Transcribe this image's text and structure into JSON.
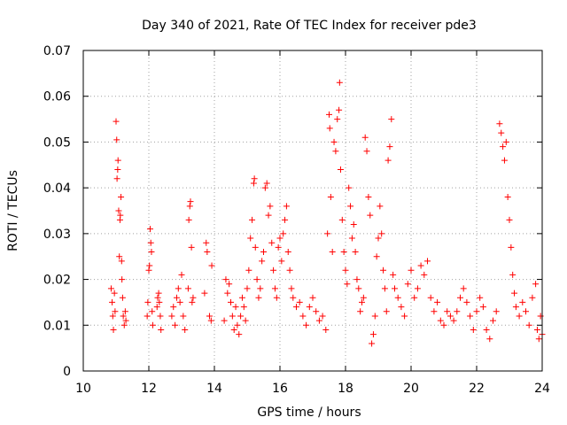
{
  "chart_data": {
    "type": "scatter",
    "title": "Day 340 of 2021, Rate Of TEC Index for receiver pde3",
    "xlabel": "GPS time / hours",
    "ylabel": "ROTI / TECUs",
    "xlim": [
      10,
      24
    ],
    "ylim": [
      0,
      0.07
    ],
    "xticks": [
      10,
      12,
      14,
      16,
      18,
      20,
      22,
      24
    ],
    "xtick_labels": [
      "10",
      "12",
      "14",
      "16",
      "18",
      "20",
      "22",
      "24"
    ],
    "yticks": [
      0,
      0.01,
      0.02,
      0.03,
      0.04,
      0.05,
      0.06,
      0.07
    ],
    "ytick_labels": [
      "0",
      "0.01",
      "0.02",
      "0.03",
      "0.04",
      "0.05",
      "0.06",
      "0.07"
    ],
    "grid": true,
    "marker": "plus",
    "color": "#ff0000",
    "series": [
      {
        "name": "ROTI",
        "points": [
          [
            10.85,
            0.018
          ],
          [
            10.88,
            0.015
          ],
          [
            10.9,
            0.012
          ],
          [
            10.92,
            0.009
          ],
          [
            10.95,
            0.017
          ],
          [
            10.97,
            0.013
          ],
          [
            11.0,
            0.0545
          ],
          [
            11.02,
            0.0505
          ],
          [
            11.03,
            0.042
          ],
          [
            11.05,
            0.044
          ],
          [
            11.06,
            0.046
          ],
          [
            11.08,
            0.035
          ],
          [
            11.1,
            0.025
          ],
          [
            11.12,
            0.033
          ],
          [
            11.13,
            0.034
          ],
          [
            11.15,
            0.038
          ],
          [
            11.17,
            0.024
          ],
          [
            11.18,
            0.02
          ],
          [
            11.2,
            0.016
          ],
          [
            11.22,
            0.012
          ],
          [
            11.25,
            0.01
          ],
          [
            11.28,
            0.013
          ],
          [
            11.3,
            0.011
          ],
          [
            11.95,
            0.012
          ],
          [
            11.97,
            0.015
          ],
          [
            12.0,
            0.022
          ],
          [
            12.02,
            0.023
          ],
          [
            12.04,
            0.031
          ],
          [
            12.06,
            0.028
          ],
          [
            12.08,
            0.026
          ],
          [
            12.1,
            0.013
          ],
          [
            12.12,
            0.01
          ],
          [
            12.25,
            0.014
          ],
          [
            12.27,
            0.016
          ],
          [
            12.3,
            0.017
          ],
          [
            12.32,
            0.015
          ],
          [
            12.35,
            0.012
          ],
          [
            12.37,
            0.009
          ],
          [
            12.7,
            0.012
          ],
          [
            12.75,
            0.014
          ],
          [
            12.8,
            0.01
          ],
          [
            12.85,
            0.016
          ],
          [
            12.9,
            0.018
          ],
          [
            12.95,
            0.015
          ],
          [
            13.0,
            0.021
          ],
          [
            13.05,
            0.012
          ],
          [
            13.1,
            0.009
          ],
          [
            13.2,
            0.018
          ],
          [
            13.22,
            0.033
          ],
          [
            13.25,
            0.036
          ],
          [
            13.27,
            0.037
          ],
          [
            13.3,
            0.027
          ],
          [
            13.32,
            0.015
          ],
          [
            13.35,
            0.016
          ],
          [
            13.7,
            0.017
          ],
          [
            13.75,
            0.028
          ],
          [
            13.78,
            0.026
          ],
          [
            13.85,
            0.012
          ],
          [
            13.9,
            0.011
          ],
          [
            13.92,
            0.023
          ],
          [
            14.3,
            0.011
          ],
          [
            14.35,
            0.02
          ],
          [
            14.4,
            0.017
          ],
          [
            14.45,
            0.019
          ],
          [
            14.5,
            0.015
          ],
          [
            14.55,
            0.012
          ],
          [
            14.6,
            0.009
          ],
          [
            14.65,
            0.014
          ],
          [
            14.7,
            0.01
          ],
          [
            14.75,
            0.008
          ],
          [
            14.8,
            0.012
          ],
          [
            14.85,
            0.016
          ],
          [
            14.9,
            0.014
          ],
          [
            14.95,
            0.011
          ],
          [
            15.0,
            0.018
          ],
          [
            15.05,
            0.022
          ],
          [
            15.1,
            0.029
          ],
          [
            15.15,
            0.033
          ],
          [
            15.2,
            0.041
          ],
          [
            15.22,
            0.042
          ],
          [
            15.25,
            0.027
          ],
          [
            15.3,
            0.02
          ],
          [
            15.35,
            0.016
          ],
          [
            15.4,
            0.018
          ],
          [
            15.45,
            0.024
          ],
          [
            15.5,
            0.026
          ],
          [
            15.55,
            0.04
          ],
          [
            15.6,
            0.041
          ],
          [
            15.65,
            0.034
          ],
          [
            15.7,
            0.036
          ],
          [
            15.75,
            0.028
          ],
          [
            15.8,
            0.022
          ],
          [
            15.85,
            0.018
          ],
          [
            15.9,
            0.016
          ],
          [
            15.95,
            0.027
          ],
          [
            16.0,
            0.029
          ],
          [
            16.05,
            0.024
          ],
          [
            16.1,
            0.03
          ],
          [
            16.15,
            0.033
          ],
          [
            16.2,
            0.036
          ],
          [
            16.25,
            0.026
          ],
          [
            16.3,
            0.022
          ],
          [
            16.35,
            0.018
          ],
          [
            16.4,
            0.016
          ],
          [
            16.5,
            0.014
          ],
          [
            16.6,
            0.015
          ],
          [
            16.7,
            0.012
          ],
          [
            16.8,
            0.01
          ],
          [
            16.9,
            0.014
          ],
          [
            17.0,
            0.016
          ],
          [
            17.1,
            0.013
          ],
          [
            17.2,
            0.011
          ],
          [
            17.3,
            0.012
          ],
          [
            17.4,
            0.009
          ],
          [
            17.45,
            0.03
          ],
          [
            17.5,
            0.056
          ],
          [
            17.52,
            0.053
          ],
          [
            17.55,
            0.038
          ],
          [
            17.6,
            0.026
          ],
          [
            17.65,
            0.05
          ],
          [
            17.7,
            0.048
          ],
          [
            17.75,
            0.055
          ],
          [
            17.8,
            0.057
          ],
          [
            17.82,
            0.063
          ],
          [
            17.85,
            0.044
          ],
          [
            17.9,
            0.033
          ],
          [
            17.95,
            0.026
          ],
          [
            18.0,
            0.022
          ],
          [
            18.05,
            0.019
          ],
          [
            18.1,
            0.04
          ],
          [
            18.15,
            0.036
          ],
          [
            18.2,
            0.029
          ],
          [
            18.25,
            0.032
          ],
          [
            18.3,
            0.026
          ],
          [
            18.35,
            0.02
          ],
          [
            18.4,
            0.018
          ],
          [
            18.45,
            0.013
          ],
          [
            18.5,
            0.015
          ],
          [
            18.55,
            0.016
          ],
          [
            18.6,
            0.051
          ],
          [
            18.65,
            0.048
          ],
          [
            18.7,
            0.038
          ],
          [
            18.75,
            0.034
          ],
          [
            18.8,
            0.006
          ],
          [
            18.85,
            0.008
          ],
          [
            18.9,
            0.012
          ],
          [
            18.95,
            0.025
          ],
          [
            19.0,
            0.029
          ],
          [
            19.05,
            0.036
          ],
          [
            19.1,
            0.03
          ],
          [
            19.15,
            0.022
          ],
          [
            19.2,
            0.018
          ],
          [
            19.25,
            0.013
          ],
          [
            19.3,
            0.046
          ],
          [
            19.35,
            0.049
          ],
          [
            19.4,
            0.055
          ],
          [
            19.45,
            0.021
          ],
          [
            19.5,
            0.018
          ],
          [
            19.6,
            0.016
          ],
          [
            19.7,
            0.014
          ],
          [
            19.8,
            0.012
          ],
          [
            19.9,
            0.019
          ],
          [
            20.0,
            0.022
          ],
          [
            20.1,
            0.016
          ],
          [
            20.2,
            0.018
          ],
          [
            20.3,
            0.023
          ],
          [
            20.4,
            0.021
          ],
          [
            20.5,
            0.024
          ],
          [
            20.6,
            0.016
          ],
          [
            20.7,
            0.013
          ],
          [
            20.8,
            0.015
          ],
          [
            20.9,
            0.011
          ],
          [
            21.0,
            0.01
          ],
          [
            21.1,
            0.013
          ],
          [
            21.2,
            0.012
          ],
          [
            21.3,
            0.011
          ],
          [
            21.4,
            0.013
          ],
          [
            21.5,
            0.016
          ],
          [
            21.6,
            0.018
          ],
          [
            21.7,
            0.015
          ],
          [
            21.8,
            0.012
          ],
          [
            21.9,
            0.009
          ],
          [
            22.0,
            0.013
          ],
          [
            22.1,
            0.016
          ],
          [
            22.2,
            0.014
          ],
          [
            22.3,
            0.009
          ],
          [
            22.4,
            0.007
          ],
          [
            22.5,
            0.011
          ],
          [
            22.6,
            0.013
          ],
          [
            22.7,
            0.054
          ],
          [
            22.75,
            0.052
          ],
          [
            22.8,
            0.049
          ],
          [
            22.85,
            0.046
          ],
          [
            22.9,
            0.05
          ],
          [
            22.95,
            0.038
          ],
          [
            23.0,
            0.033
          ],
          [
            23.05,
            0.027
          ],
          [
            23.1,
            0.021
          ],
          [
            23.15,
            0.017
          ],
          [
            23.2,
            0.014
          ],
          [
            23.3,
            0.012
          ],
          [
            23.4,
            0.015
          ],
          [
            23.5,
            0.013
          ],
          [
            23.6,
            0.01
          ],
          [
            23.7,
            0.016
          ],
          [
            23.8,
            0.019
          ],
          [
            23.85,
            0.009
          ],
          [
            23.9,
            0.007
          ],
          [
            23.95,
            0.012
          ],
          [
            24.0,
            0.008
          ]
        ]
      }
    ]
  }
}
